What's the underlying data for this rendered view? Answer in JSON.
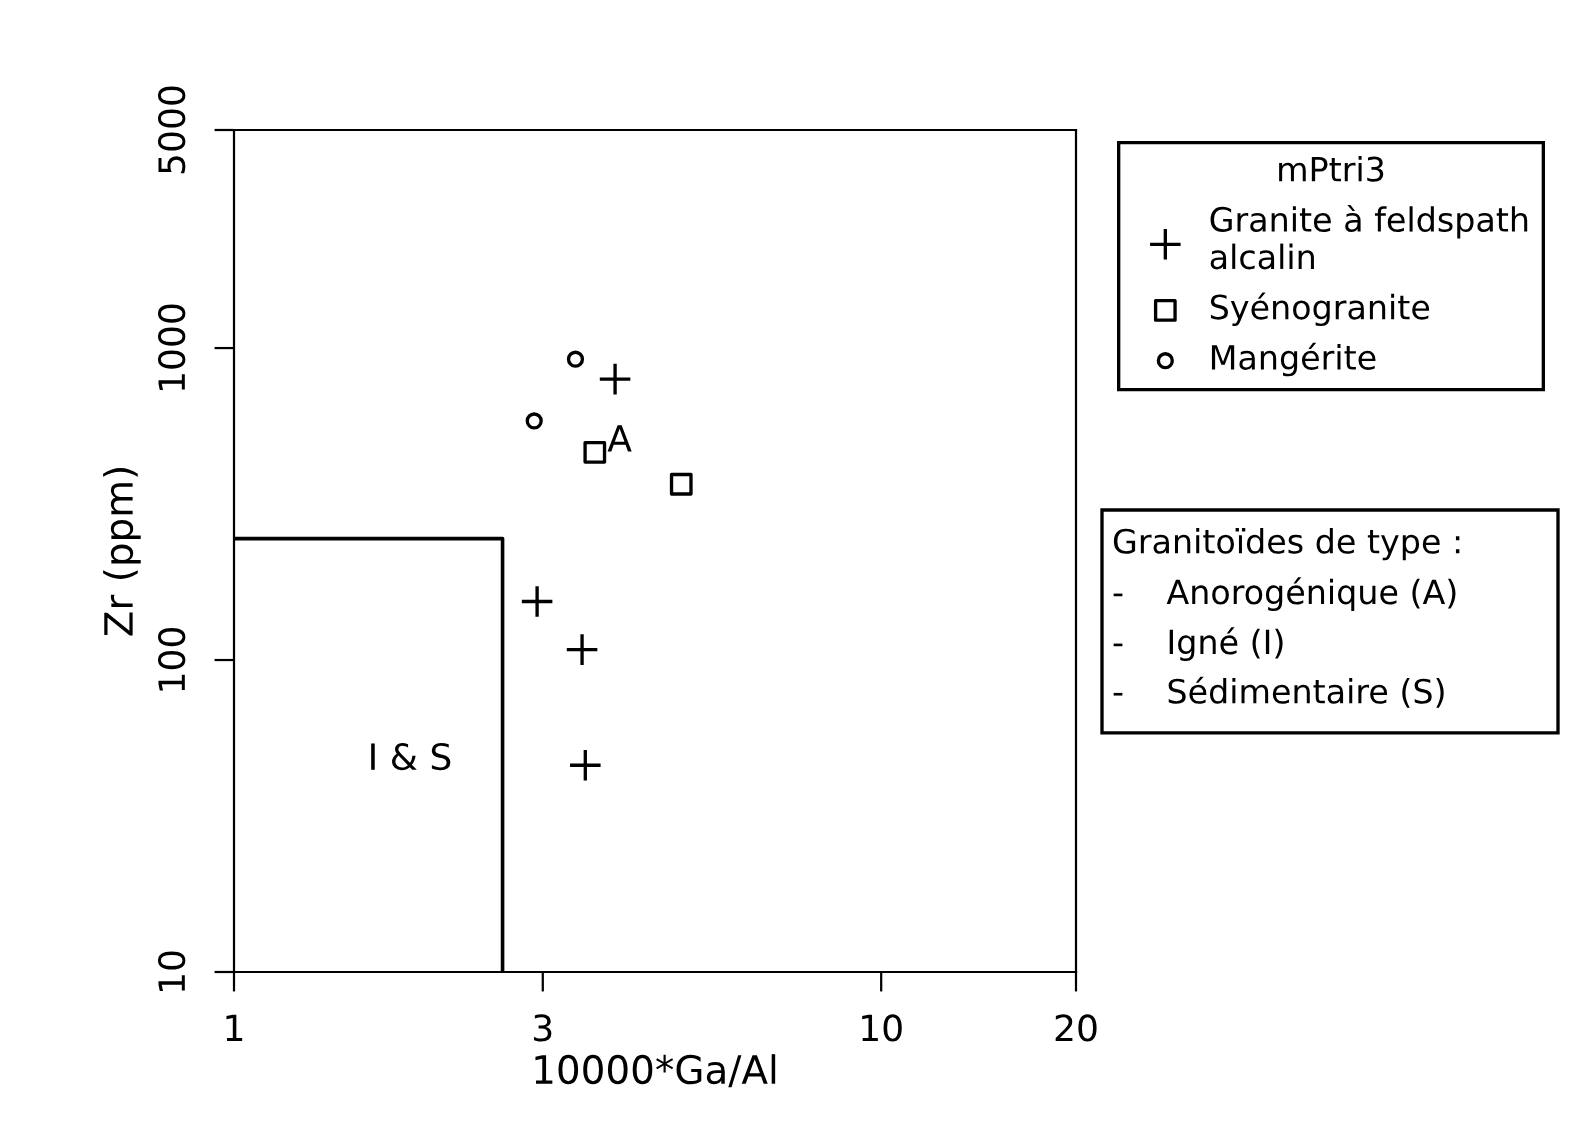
{
  "chart_data": {
    "type": "scatter",
    "xlabel": "10000*Ga/Al",
    "ylabel": "Zr (ppm)",
    "legend_title": "mPtri3",
    "log": "xy",
    "xlim": [
      1,
      20
    ],
    "ylim": [
      10,
      5000
    ],
    "xticks": [
      1,
      3,
      10,
      20
    ],
    "yticks": [
      10,
      100,
      1000,
      5000
    ],
    "grid": false,
    "legend": "right",
    "series": [
      {
        "name": "Granite à feldspath\nalcalin",
        "color": "#000000",
        "marker": "cross",
        "x": [
          3.88,
          2.94,
          3.45,
          3.49
        ],
        "values": [
          795,
          154,
          108,
          46
        ]
      },
      {
        "name": "Syénogranite",
        "color": "#000000",
        "marker": "square",
        "x": [
          3.61,
          4.91
        ],
        "values": [
          463,
          366
        ]
      },
      {
        "name": "Mangérite",
        "color": "#000000",
        "marker": "circle",
        "x": [
          3.37,
          2.91
        ],
        "values": [
          921,
          584
        ]
      },
      {
        "type": "line",
        "color": "#000000",
        "marker": "none",
        "x": [
          1,
          2.6,
          2.6
        ],
        "values": [
          245,
          245,
          10
        ]
      }
    ],
    "annotations": [
      "A",
      "I & S",
      "Granitoïdes de type :",
      "-    Anorogénique (A)",
      "-    Igné (I)",
      "-    Sédimentaire (S)"
    ]
  }
}
